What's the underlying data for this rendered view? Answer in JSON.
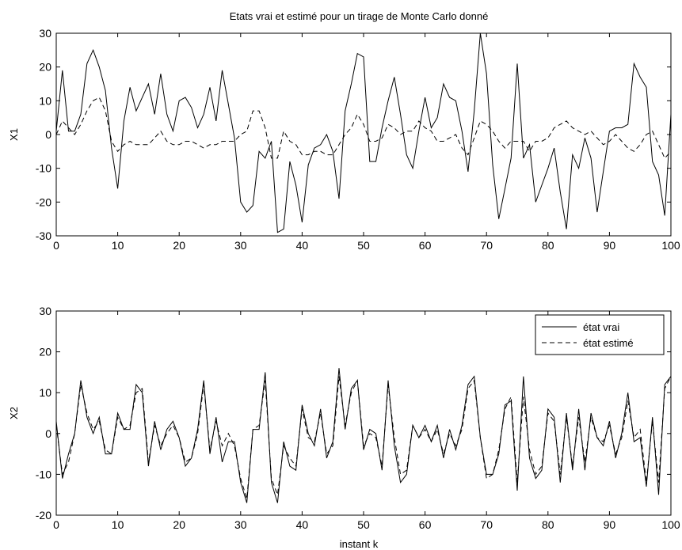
{
  "figure": {
    "title": "Etats vrai et estimé pour un tirage de Monte Carlo donné",
    "xlabel": "instant k"
  },
  "legend": {
    "items": [
      {
        "label": "état vrai",
        "style": "solid"
      },
      {
        "label": "état estimé",
        "style": "dashed"
      }
    ],
    "placement": "top-right of lower plot"
  },
  "chart_data": [
    {
      "type": "line",
      "title": "Etats vrai et estimé pour un tirage de Monte Carlo donné",
      "xlabel": "",
      "ylabel": "X1",
      "xlim": [
        0,
        100
      ],
      "ylim": [
        -30,
        30
      ],
      "xticks": [
        0,
        10,
        20,
        30,
        40,
        50,
        60,
        70,
        80,
        90,
        100
      ],
      "yticks": [
        -30,
        -20,
        -10,
        0,
        10,
        20,
        30
      ],
      "grid": false,
      "x": [
        0,
        1,
        2,
        3,
        4,
        5,
        6,
        7,
        8,
        9,
        10,
        11,
        12,
        13,
        14,
        15,
        16,
        17,
        18,
        19,
        20,
        21,
        22,
        23,
        24,
        25,
        26,
        27,
        28,
        29,
        30,
        31,
        32,
        33,
        34,
        35,
        36,
        37,
        38,
        39,
        40,
        41,
        42,
        43,
        44,
        45,
        46,
        47,
        48,
        49,
        50,
        51,
        52,
        53,
        54,
        55,
        56,
        57,
        58,
        59,
        60,
        61,
        62,
        63,
        64,
        65,
        66,
        67,
        68,
        69,
        70,
        71,
        72,
        73,
        74,
        75,
        76,
        77,
        78,
        79,
        80,
        81,
        82,
        83,
        84,
        85,
        86,
        87,
        88,
        89,
        90,
        91,
        92,
        93,
        94,
        95,
        96,
        97,
        98,
        99,
        100
      ],
      "series": [
        {
          "name": "état vrai",
          "style": "solid",
          "values": [
            1,
            19,
            1,
            1,
            6,
            21,
            25,
            20,
            13,
            -4,
            -16,
            4,
            14,
            7,
            11,
            15,
            6,
            18,
            6,
            1,
            10,
            11,
            8,
            2,
            6,
            14,
            4,
            19,
            9,
            -1,
            -20,
            -23,
            -21,
            -5,
            -7,
            -2,
            -29,
            -28,
            -8,
            -15,
            -26,
            -9,
            -4,
            -3,
            0,
            -5,
            -19,
            7,
            15,
            24,
            23,
            -8,
            -8,
            2,
            10,
            17,
            6,
            -6,
            -10,
            1,
            11,
            2,
            5,
            15,
            11,
            10,
            1,
            -11,
            7,
            30,
            18,
            -9,
            -25,
            -16,
            -7,
            21,
            -7,
            -3,
            -20,
            -15,
            -10,
            -4,
            -17,
            -28,
            -6,
            -10,
            -1,
            -7,
            -23,
            -11,
            1,
            2,
            2,
            3,
            21,
            17,
            14,
            -8,
            -12,
            -24,
            6
          ]
        },
        {
          "name": "état estimé",
          "style": "dashed",
          "values": [
            0,
            4,
            2,
            0,
            3,
            7,
            10,
            11,
            7,
            -2,
            -5,
            -3,
            -2,
            -3,
            -3,
            -3,
            -1,
            1,
            -2,
            -3,
            -3,
            -2,
            -2,
            -3,
            -4,
            -3,
            -3,
            -2,
            -2,
            -2,
            0,
            1,
            7,
            7,
            2,
            -7,
            -7,
            1,
            -2,
            -3,
            -6,
            -6,
            -5,
            -5,
            -6,
            -6,
            -3,
            0,
            2,
            6,
            3,
            -2,
            -2,
            -1,
            3,
            2,
            0,
            1,
            1,
            4,
            2,
            1,
            -2,
            -2,
            -1,
            0,
            -4,
            -6,
            -1,
            4,
            3,
            1,
            -2,
            -4,
            -2,
            -2,
            -2,
            -5,
            -2,
            -2,
            -1,
            2,
            3,
            4,
            2,
            1,
            0,
            1,
            -1,
            -3,
            -2,
            0,
            -2,
            -4,
            -5,
            -3,
            0,
            1,
            -3,
            -7,
            -5
          ]
        }
      ]
    },
    {
      "type": "line",
      "title": "",
      "xlabel": "instant k",
      "ylabel": "X2",
      "xlim": [
        0,
        100
      ],
      "ylim": [
        -20,
        30
      ],
      "xticks": [
        0,
        10,
        20,
        30,
        40,
        50,
        60,
        70,
        80,
        90,
        100
      ],
      "yticks": [
        -20,
        -10,
        0,
        10,
        20,
        30
      ],
      "grid": false,
      "x": [
        0,
        1,
        2,
        3,
        4,
        5,
        6,
        7,
        8,
        9,
        10,
        11,
        12,
        13,
        14,
        15,
        16,
        17,
        18,
        19,
        20,
        21,
        22,
        23,
        24,
        25,
        26,
        27,
        28,
        29,
        30,
        31,
        32,
        33,
        34,
        35,
        36,
        37,
        38,
        39,
        40,
        41,
        42,
        43,
        44,
        45,
        46,
        47,
        48,
        49,
        50,
        51,
        52,
        53,
        54,
        55,
        56,
        57,
        58,
        59,
        60,
        61,
        62,
        63,
        64,
        65,
        66,
        67,
        68,
        69,
        70,
        71,
        72,
        73,
        74,
        75,
        76,
        77,
        78,
        79,
        80,
        81,
        82,
        83,
        84,
        85,
        86,
        87,
        88,
        89,
        90,
        91,
        92,
        93,
        94,
        95,
        96,
        97,
        98,
        99,
        100
      ],
      "series": [
        {
          "name": "état vrai",
          "style": "solid",
          "values": [
            3,
            -11,
            -5,
            0,
            13,
            4,
            0,
            4,
            -5,
            -5,
            5,
            1,
            1,
            12,
            10,
            -8,
            3,
            -4,
            1,
            3,
            -1,
            -8,
            -6,
            1,
            13,
            -5,
            4,
            -7,
            -2,
            -2,
            -12,
            -17,
            1,
            1,
            15,
            -12,
            -17,
            -2,
            -8,
            -9,
            7,
            0,
            -3,
            6,
            -6,
            -2,
            16,
            1,
            11,
            13,
            -4,
            1,
            0,
            -9,
            13,
            -3,
            -12,
            -10,
            2,
            -1,
            2,
            -2,
            2,
            -6,
            1,
            -4,
            2,
            12,
            14,
            -1,
            -10,
            -10,
            -5,
            7,
            8,
            -14,
            14,
            -6,
            -11,
            -9,
            6,
            4,
            -12,
            5,
            -9,
            6,
            -9,
            5,
            -1,
            -3,
            3,
            -6,
            0,
            10,
            -2,
            -1,
            -13,
            4,
            -15,
            12,
            14
          ]
        },
        {
          "name": "état estimé",
          "style": "dashed",
          "values": [
            2,
            -10,
            -7,
            0,
            12,
            5,
            1,
            3,
            -4,
            -5,
            4,
            1,
            2,
            10,
            11,
            -7,
            2,
            -3,
            0,
            2,
            -1,
            -7,
            -6,
            0,
            12,
            -4,
            3,
            -3,
            0,
            -3,
            -11,
            -16,
            1,
            2,
            13,
            -11,
            -15,
            -3,
            -6,
            -8,
            6,
            -1,
            -2,
            5,
            -5,
            -3,
            14,
            2,
            10,
            13,
            -3,
            0,
            -1,
            -8,
            12,
            -1,
            -10,
            -9,
            2,
            -1,
            1,
            -2,
            1,
            -5,
            0,
            -3,
            1,
            11,
            13,
            -1,
            -11,
            -10,
            -4,
            6,
            9,
            -12,
            9,
            -4,
            -10,
            -8,
            5,
            3,
            -10,
            4,
            -8,
            4,
            -7,
            4,
            -1,
            -2,
            2,
            -5,
            -1,
            8,
            -1,
            1,
            -12,
            3,
            -12,
            11,
            14
          ]
        }
      ]
    }
  ]
}
